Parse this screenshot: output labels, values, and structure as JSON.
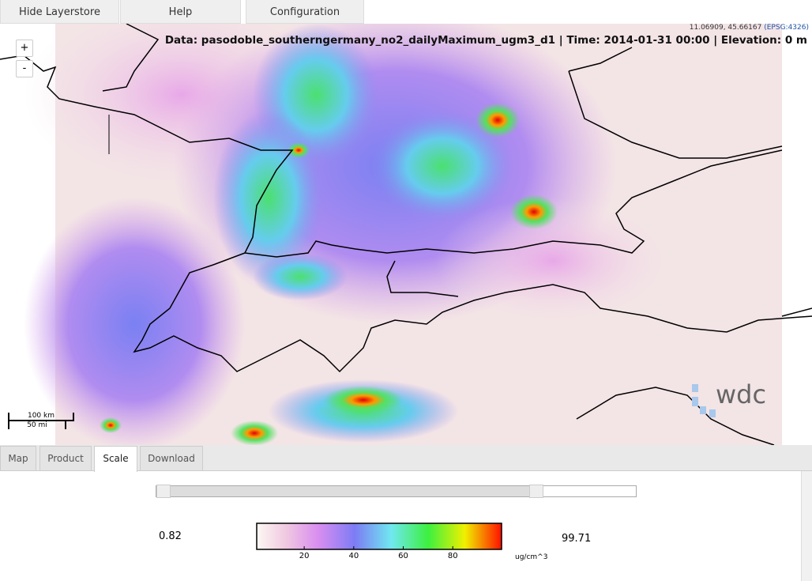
{
  "toolbar": {
    "buttons": [
      "Hide Layerstore",
      "Help",
      "Configuration"
    ]
  },
  "map": {
    "coordinates": "11.06909, 45.66167",
    "projection": "(EPSG:4326)",
    "info": "Data: pasodoble_southerngermany_no2_dailyMaximum_ugm3_d1 | Time: 2014-01-31 00:00 | Elevation: 0 m",
    "zoom_in": "+",
    "zoom_out": "-",
    "scale_km": "100 km",
    "scale_mi": "50 mi",
    "logo": "wdc"
  },
  "tabs": {
    "items": [
      "Map",
      "Product",
      "Scale",
      "Download"
    ],
    "active": 2
  },
  "scale": {
    "min": 0.82,
    "max": 99.71,
    "ticks": [
      20,
      40,
      60,
      80
    ],
    "unit": "ug/cm^3"
  }
}
